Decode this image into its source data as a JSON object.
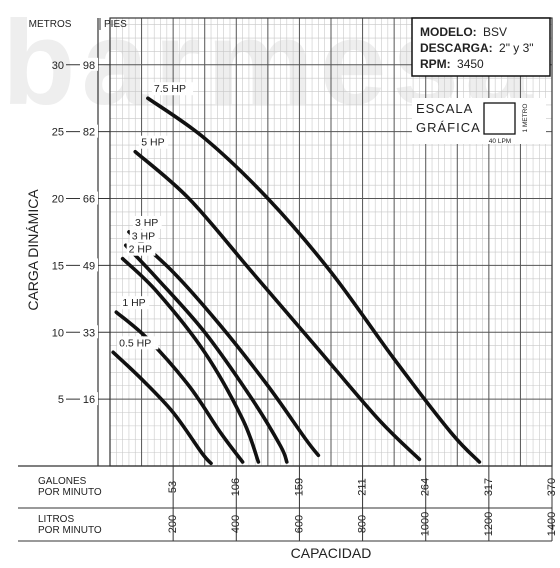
{
  "watermark": "barmesa",
  "model_box": {
    "modelo_label": "MODELO:",
    "modelo_value": "BSV",
    "descarga_label": "DESCARGA:",
    "descarga_value": "2\" y 3\"",
    "rpm_label": "RPM:",
    "rpm_value": "3450"
  },
  "scale_box": {
    "title_line1": "ESCALA",
    "title_line2": "GRÁFICA",
    "vertical_label": "1 METRO",
    "horizontal_label": "40 LPM"
  },
  "chart_data": {
    "type": "line",
    "title": "",
    "ylabel": "CARGA DINÁMICA",
    "xlabel": "CAPACIDAD",
    "y_units_header": [
      "METROS",
      "PIES"
    ],
    "x_row_labels": [
      "GALONES POR MINUTO",
      "LITROS POR MINUTO"
    ],
    "x_unit": "LPM",
    "y_unit": "m",
    "xlim": [
      0,
      1400
    ],
    "ylim": [
      0,
      33.5
    ],
    "grid": true,
    "y_ticks": [
      {
        "m": 30,
        "ft": "98"
      },
      {
        "m": 25,
        "ft": "82"
      },
      {
        "m": 20,
        "ft": "66"
      },
      {
        "m": 15,
        "ft": "49"
      },
      {
        "m": 10,
        "ft": "33"
      },
      {
        "m": 5,
        "ft": "16"
      }
    ],
    "x_ticks": [
      {
        "lpm": 200,
        "gpm": "53"
      },
      {
        "lpm": 400,
        "gpm": "106"
      },
      {
        "lpm": 600,
        "gpm": "159"
      },
      {
        "lpm": 800,
        "gpm": "211"
      },
      {
        "lpm": 1000,
        "gpm": "264"
      },
      {
        "lpm": 1200,
        "gpm": "317"
      },
      {
        "lpm": 1400,
        "gpm": "370"
      }
    ],
    "series": [
      {
        "name": "7.5 HP",
        "x": [
          120,
          300,
          500,
          700,
          900,
          1080,
          1170
        ],
        "y": [
          27.5,
          24.5,
          20.0,
          14.5,
          8.0,
          2.5,
          0.3
        ]
      },
      {
        "name": "5 HP",
        "x": [
          80,
          250,
          450,
          650,
          850,
          980
        ],
        "y": [
          23.5,
          20.0,
          14.5,
          9.0,
          3.5,
          0.5
        ]
      },
      {
        "name": "3 HP",
        "x": [
          60,
          200,
          350,
          500,
          620,
          660
        ],
        "y": [
          17.5,
          14.5,
          10.5,
          6.0,
          2.0,
          0.8
        ]
      },
      {
        "name": "3 HP",
        "x": [
          50,
          150,
          300,
          450,
          540,
          560
        ],
        "y": [
          16.5,
          14.0,
          10.0,
          5.0,
          1.5,
          0.3
        ]
      },
      {
        "name": "2 HP",
        "x": [
          40,
          150,
          300,
          420,
          470
        ],
        "y": [
          15.5,
          13.0,
          8.5,
          3.5,
          0.3
        ]
      },
      {
        "name": "1 HP",
        "x": [
          20,
          120,
          250,
          350,
          420
        ],
        "y": [
          11.5,
          9.5,
          6.0,
          2.5,
          0.3
        ]
      },
      {
        "name": "0.5 HP",
        "x": [
          10,
          100,
          200,
          290,
          320
        ],
        "y": [
          8.5,
          6.5,
          4.0,
          1.0,
          0.2
        ]
      }
    ]
  }
}
